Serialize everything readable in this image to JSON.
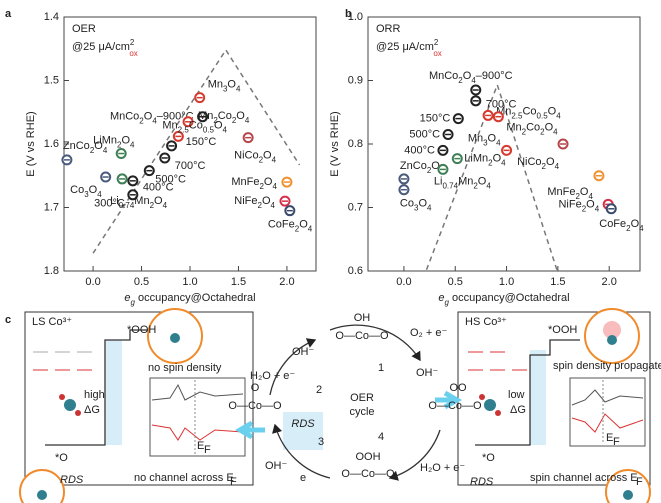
{
  "chart_data": [
    {
      "type": "scatter",
      "panel": "a",
      "title": "OER",
      "subtitle": "@25 μA/cm",
      "subtitle_sup": "2",
      "subtitle_sub": "ox",
      "xlabel": "e",
      "xlabel_sub": "g",
      "xlabel_rest": " occupancy@Octahedral",
      "ylabel": "E (V vs RHE)",
      "xlim": [
        -0.3,
        2.3
      ],
      "ylim": [
        1.8,
        1.4
      ],
      "xticks": [
        {
          "value": 0,
          "label": "0.0"
        },
        0.5,
        {
          "value": 1,
          "label": "1.0"
        },
        1.5,
        {
          "value": 2,
          "label": "2.0"
        }
      ],
      "yticks": [
        1.4,
        1.5,
        1.6,
        1.7,
        1.8
      ],
      "trend": {
        "x": [
          0.0,
          1.37,
          2.13
        ],
        "y": [
          1.772,
          1.452,
          1.633
        ]
      },
      "series": [
        {
          "name": "MnCo2O4–900°C",
          "color": "#222222",
          "x": [
            1.13
          ],
          "values": [
            1.557
          ]
        },
        {
          "name": "Mn3O4",
          "color": "#d63a2f",
          "x": [
            1.1
          ],
          "values": [
            1.527
          ]
        },
        {
          "name": "Mn2Co2O4",
          "color": "#d63a2f",
          "x": [
            0.98
          ],
          "values": [
            1.565
          ]
        },
        {
          "name": "Mn2.5Co0.5O4",
          "color": "#d63a2f",
          "x": [
            0.88
          ],
          "values": [
            1.588
          ]
        },
        {
          "name": "150°C",
          "color": "#222222",
          "x": [
            0.81
          ],
          "values": [
            1.603
          ]
        },
        {
          "name": "700°C",
          "color": "#222222",
          "x": [
            0.74
          ],
          "values": [
            1.622
          ]
        },
        {
          "name": "500°C",
          "color": "#222222",
          "x": [
            0.58
          ],
          "values": [
            1.642
          ]
        },
        {
          "name": "400°C",
          "color": "#222222",
          "x": [
            0.41
          ],
          "values": [
            1.658
          ]
        },
        {
          "name": "300°C",
          "color": "#222222",
          "x": [
            0.41
          ],
          "values": [
            1.68
          ]
        },
        {
          "name": "ZnCo2O4",
          "color": "#4a5a7a",
          "x": [
            -0.27
          ],
          "values": [
            1.625
          ]
        },
        {
          "name": "Co3O4",
          "color": "#4a5a7a",
          "x": [
            0.13
          ],
          "values": [
            1.652
          ]
        },
        {
          "name": "LiMn2O4",
          "color": "#3f7f55",
          "x": [
            0.29
          ],
          "values": [
            1.615
          ]
        },
        {
          "name": "Li0.74Mn2O4",
          "color": "#3f7f55",
          "x": [
            0.3
          ],
          "values": [
            1.655
          ]
        },
        {
          "name": "NiCo2O4",
          "color": "#b5474a",
          "x": [
            1.6
          ],
          "values": [
            1.59
          ]
        },
        {
          "name": "MnFe2O4",
          "color": "#f0902e",
          "x": [
            2.0
          ],
          "values": [
            1.66
          ]
        },
        {
          "name": "NiFe2O4",
          "color": "#d6304a",
          "x": [
            1.98
          ],
          "values": [
            1.69
          ]
        },
        {
          "name": "CoFe2O4",
          "color": "#3a4a6e",
          "x": [
            2.03
          ],
          "values": [
            1.705
          ]
        }
      ]
    },
    {
      "type": "scatter",
      "panel": "b",
      "title": "ORR",
      "subtitle": "@25 μA/cm",
      "subtitle_sup": "2",
      "subtitle_sub": "ox",
      "xlabel": "e",
      "xlabel_sub": "g",
      "xlabel_rest": " occupancy@Octahedral",
      "ylabel": "E (V vs RHE)",
      "xlim": [
        -0.35,
        2.3
      ],
      "ylim": [
        0.6,
        1.0
      ],
      "xticks": [
        {
          "value": 0,
          "label": "0.0"
        },
        0.5,
        {
          "value": 1,
          "label": "1.0"
        },
        1.5,
        {
          "value": 2,
          "label": "2.0"
        }
      ],
      "yticks": [
        0.6,
        0.7,
        0.8,
        0.9,
        {
          "value": 1,
          "label": "1.0"
        }
      ],
      "trend": {
        "x": [
          0.22,
          0.91,
          1.49
        ],
        "y": [
          0.602,
          0.893,
          0.602
        ]
      },
      "series": [
        {
          "name": "MnCo2O4–900°C",
          "color": "#222222",
          "x": [
            0.7
          ],
          "values": [
            0.885
          ]
        },
        {
          "name": "700°C",
          "color": "#222222",
          "x": [
            0.7
          ],
          "values": [
            0.868
          ]
        },
        {
          "name": "150°C",
          "color": "#222222",
          "x": [
            0.53
          ],
          "values": [
            0.84
          ]
        },
        {
          "name": "500°C",
          "color": "#222222",
          "x": [
            0.43
          ],
          "values": [
            0.815
          ]
        },
        {
          "name": "400°C",
          "color": "#222222",
          "x": [
            0.38
          ],
          "values": [
            0.79
          ]
        },
        {
          "name": "Mn2.5Co0.5O4",
          "color": "#d63a2f",
          "x": [
            0.82
          ],
          "values": [
            0.845
          ]
        },
        {
          "name": "Mn2Co2O4",
          "color": "#d63a2f",
          "x": [
            0.92
          ],
          "values": [
            0.843
          ]
        },
        {
          "name": "Mn3O4",
          "color": "#d63a2f",
          "x": [
            1.0
          ],
          "values": [
            0.79
          ]
        },
        {
          "name": "NiCo2O4",
          "color": "#b5474a",
          "x": [
            1.55
          ],
          "values": [
            0.8
          ]
        },
        {
          "name": "MnFe2O4",
          "color": "#f0902e",
          "x": [
            1.9
          ],
          "values": [
            0.75
          ]
        },
        {
          "name": "NiFe2O4",
          "color": "#d6304a",
          "x": [
            1.99
          ],
          "values": [
            0.705
          ]
        },
        {
          "name": "CoFe2O4",
          "color": "#3a4a6e",
          "x": [
            2.02
          ],
          "values": [
            0.698
          ]
        },
        {
          "name": "ZnCo2O4",
          "color": "#4a5a7a",
          "x": [
            0.0
          ],
          "values": [
            0.745
          ]
        },
        {
          "name": "Co3O4",
          "color": "#4a5a7a",
          "x": [
            0.0
          ],
          "values": [
            0.728
          ]
        },
        {
          "name": "LiMn2O4",
          "color": "#3f7f55",
          "x": [
            0.52
          ],
          "values": [
            0.777
          ]
        },
        {
          "name": "Li0.74Mn2O4",
          "color": "#3f7f55",
          "x": [
            0.38
          ],
          "values": [
            0.76
          ]
        }
      ]
    }
  ],
  "panel_c": {
    "label": "c",
    "left": {
      "title": "LS Co³⁺",
      "ooh": "*OOH",
      "spin": "no spin density",
      "high": "high",
      "dg": "ΔG",
      "o": "*O",
      "rds": "RDS",
      "ef_e": "E",
      "ef_f": "F",
      "note": "no channel across E",
      "note_f": "F"
    },
    "right": {
      "title": "HS Co³⁺",
      "ooh": "*OOH",
      "spin": "spin density propagates",
      "low": "low",
      "dg": "ΔG",
      "o": "*O",
      "rds": "RDS",
      "ef_e": "E",
      "ef_f": "F",
      "note": "spin channel across E",
      "note_f": "F"
    },
    "cycle": {
      "name": "OER",
      "name2": "cycle",
      "steps": [
        "1",
        "2",
        "3",
        "4"
      ],
      "rds": "RDS",
      "top": {
        "oh": "OH",
        "chain": "O—Co—O"
      },
      "left": {
        "o": "O",
        "chain": "O—Co—O"
      },
      "right": {
        "oo": "OO",
        "chain": "O—Co—O"
      },
      "bottom": {
        "ooh": "OOH",
        "chain": "O—Co—O"
      },
      "species": [
        "OH⁻",
        "O₂ + e⁻",
        "OH⁻",
        "H₂O + e⁻",
        "OH⁻",
        "e",
        "H₂O + e⁻"
      ]
    }
  }
}
